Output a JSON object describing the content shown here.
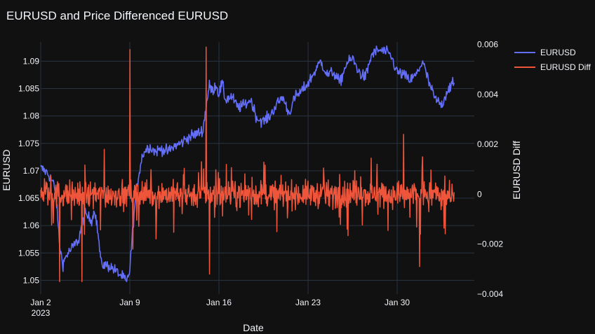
{
  "chart_data": {
    "type": "line",
    "title": "EURUSD and Price Differenced EURUSD",
    "xlabel": "Date",
    "ylabel": "EURUSD",
    "y2label": "EURUSD Diff",
    "x_range": [
      "2023-01-02",
      "2023-02-02"
    ],
    "x_ticks": [
      {
        "date": "2023-01-02",
        "label": "Jan 2",
        "sublabel": "2023"
      },
      {
        "date": "2023-01-09",
        "label": "Jan 9",
        "sublabel": ""
      },
      {
        "date": "2023-01-16",
        "label": "Jan 16",
        "sublabel": ""
      },
      {
        "date": "2023-01-23",
        "label": "Jan 23",
        "sublabel": ""
      },
      {
        "date": "2023-01-30",
        "label": "Jan 30",
        "sublabel": ""
      }
    ],
    "ylim": [
      1.0475,
      1.0935
    ],
    "y_ticks": [
      "1.05",
      "1.055",
      "1.06",
      "1.065",
      "1.07",
      "1.075",
      "1.08",
      "1.085",
      "1.09"
    ],
    "y2lim": [
      -0.004,
      0.0061
    ],
    "y2_ticks": [
      "−0.004",
      "−0.002",
      "0",
      "0.002",
      "0.004",
      "0.006"
    ],
    "legend_position": "top-right",
    "grid": true,
    "series": [
      {
        "name": "EURUSD",
        "axis": "y",
        "color": "#636efa",
        "points": [
          [
            "2023-01-02T00:00",
            1.0705
          ],
          [
            "2023-01-02T12:00",
            1.0697
          ],
          [
            "2023-01-03T00:00",
            1.0678
          ],
          [
            "2023-01-03T06:00",
            1.064
          ],
          [
            "2023-01-03T12:00",
            1.056
          ],
          [
            "2023-01-03T18:00",
            1.053
          ],
          [
            "2023-01-04T00:00",
            1.0545
          ],
          [
            "2023-01-04T12:00",
            1.056
          ],
          [
            "2023-01-05T00:00",
            1.0575
          ],
          [
            "2023-01-05T06:00",
            1.0605
          ],
          [
            "2023-01-05T12:00",
            1.062
          ],
          [
            "2023-01-06T00:00",
            1.061
          ],
          [
            "2023-01-06T06:00",
            1.063
          ],
          [
            "2023-01-06T12:00",
            1.0585
          ],
          [
            "2023-01-06T18:00",
            1.053
          ],
          [
            "2023-01-07T12:00",
            1.0525
          ],
          [
            "2023-01-08T00:00",
            1.0515
          ],
          [
            "2023-01-08T12:00",
            1.0505
          ],
          [
            "2023-01-08T18:00",
            1.0495
          ],
          [
            "2023-01-09T00:00",
            1.052
          ],
          [
            "2023-01-09T06:00",
            1.06
          ],
          [
            "2023-01-09T12:00",
            1.066
          ],
          [
            "2023-01-09T18:00",
            1.07
          ],
          [
            "2023-01-10T00:00",
            1.073
          ],
          [
            "2023-01-10T12:00",
            1.0745
          ],
          [
            "2023-01-11T00:00",
            1.0735
          ],
          [
            "2023-01-11T12:00",
            1.074
          ],
          [
            "2023-01-12T00:00",
            1.0735
          ],
          [
            "2023-01-12T12:00",
            1.0745
          ],
          [
            "2023-01-13T00:00",
            1.075
          ],
          [
            "2023-01-13T12:00",
            1.076
          ],
          [
            "2023-01-14T00:00",
            1.0765
          ],
          [
            "2023-01-14T12:00",
            1.077
          ],
          [
            "2023-01-14T18:00",
            1.0775
          ],
          [
            "2023-01-15T00:00",
            1.082
          ],
          [
            "2023-01-15T06:00",
            1.0855
          ],
          [
            "2023-01-15T12:00",
            1.0845
          ],
          [
            "2023-01-15T18:00",
            1.0858
          ],
          [
            "2023-01-16T00:00",
            1.084
          ],
          [
            "2023-01-16T06:00",
            1.086
          ],
          [
            "2023-01-16T12:00",
            1.083
          ],
          [
            "2023-01-17T00:00",
            1.0835
          ],
          [
            "2023-01-17T12:00",
            1.0815
          ],
          [
            "2023-01-18T00:00",
            1.082
          ],
          [
            "2023-01-18T12:00",
            1.083
          ],
          [
            "2023-01-19T00:00",
            1.0795
          ],
          [
            "2023-01-19T12:00",
            1.079
          ],
          [
            "2023-01-20T00:00",
            1.08
          ],
          [
            "2023-01-20T12:00",
            1.082
          ],
          [
            "2023-01-21T00:00",
            1.0835
          ],
          [
            "2023-01-21T12:00",
            1.0805
          ],
          [
            "2023-01-22T00:00",
            1.0835
          ],
          [
            "2023-01-22T12:00",
            1.0845
          ],
          [
            "2023-01-23T00:00",
            1.086
          ],
          [
            "2023-01-23T12:00",
            1.088
          ],
          [
            "2023-01-24T00:00",
            1.09
          ],
          [
            "2023-01-24T12:00",
            1.0875
          ],
          [
            "2023-01-25T00:00",
            1.088
          ],
          [
            "2023-01-25T12:00",
            1.086
          ],
          [
            "2023-01-26T00:00",
            1.0895
          ],
          [
            "2023-01-26T12:00",
            1.0905
          ],
          [
            "2023-01-27T00:00",
            1.088
          ],
          [
            "2023-01-27T12:00",
            1.087
          ],
          [
            "2023-01-28T00:00",
            1.0912
          ],
          [
            "2023-01-28T12:00",
            1.092
          ],
          [
            "2023-01-29T00:00",
            1.0918
          ],
          [
            "2023-01-29T12:00",
            1.091
          ],
          [
            "2023-01-30T00:00",
            1.088
          ],
          [
            "2023-01-30T12:00",
            1.0875
          ],
          [
            "2023-01-31T00:00",
            1.0865
          ],
          [
            "2023-01-31T12:00",
            1.0875
          ],
          [
            "2023-02-01T00:00",
            1.09
          ],
          [
            "2023-02-01T12:00",
            1.086
          ],
          [
            "2023-02-02T00:00",
            1.083
          ],
          [
            "2023-02-02T12:00",
            1.082
          ],
          [
            "2023-02-03T00:00",
            1.085
          ],
          [
            "2023-02-03T12:00",
            1.086
          ]
        ]
      },
      {
        "name": "EURUSD Diff",
        "axis": "y2",
        "color": "#ef553b",
        "spikes": [
          [
            "2023-01-03T12:00",
            -0.0035
          ],
          [
            "2023-01-05T06:00",
            -0.0035
          ],
          [
            "2023-01-07T00:00",
            0.0018
          ],
          [
            "2023-01-09T00:00",
            0.0058
          ],
          [
            "2023-01-09T06:00",
            -0.0022
          ],
          [
            "2023-01-15T00:00",
            0.0059
          ],
          [
            "2023-01-15T06:00",
            -0.0032
          ],
          [
            "2023-01-30T12:00",
            0.0024
          ],
          [
            "2023-01-31T18:00",
            -0.0029
          ],
          [
            "2023-02-01T00:00",
            0.0015
          ]
        ]
      }
    ]
  }
}
